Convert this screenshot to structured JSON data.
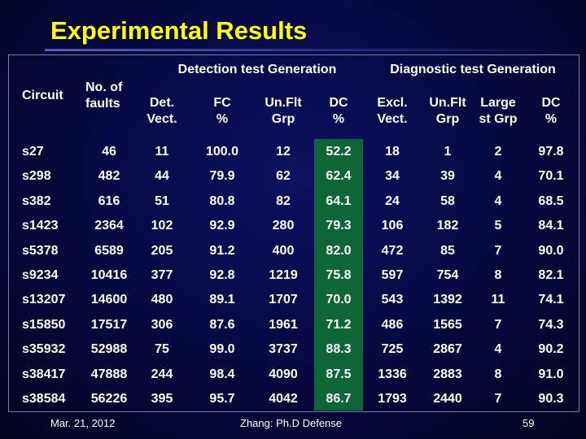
{
  "title": "Experimental Results",
  "groups": {
    "detection": "Detection test Generation",
    "diagnostic": "Diagnostic test Generation"
  },
  "headers": {
    "circuit": "Circuit",
    "faults": [
      "No. of",
      "faults"
    ],
    "det_vect": [
      "Det.",
      "Vect."
    ],
    "fc": [
      "FC",
      "%"
    ],
    "unflt_grp": [
      "Un.Flt",
      "Grp"
    ],
    "dc": [
      "DC",
      "%"
    ],
    "excl_vect": [
      "Excl.",
      "Vect."
    ],
    "unflt_grp2": [
      "Un.Flt",
      "Grp"
    ],
    "large_grp": [
      "Large",
      "st Grp"
    ],
    "dc2": [
      "DC",
      "%"
    ]
  },
  "rows": [
    [
      "s27",
      "46",
      "11",
      "100.0",
      "12",
      "52.2",
      "18",
      "1",
      "2",
      "97.8"
    ],
    [
      "s298",
      "482",
      "44",
      "79.9",
      "62",
      "62.4",
      "34",
      "39",
      "4",
      "70.1"
    ],
    [
      "s382",
      "616",
      "51",
      "80.8",
      "82",
      "64.1",
      "24",
      "58",
      "4",
      "68.5"
    ],
    [
      "s1423",
      "2364",
      "102",
      "92.9",
      "280",
      "79.3",
      "106",
      "182",
      "5",
      "84.1"
    ],
    [
      "s5378",
      "6589",
      "205",
      "91.2",
      "400",
      "82.0",
      "472",
      "85",
      "7",
      "90.0"
    ],
    [
      "s9234",
      "10416",
      "377",
      "92.8",
      "1219",
      "75.8",
      "597",
      "754",
      "8",
      "82.1"
    ],
    [
      "s13207",
      "14600",
      "480",
      "89.1",
      "1707",
      "70.0",
      "543",
      "1392",
      "11",
      "74.1"
    ],
    [
      "s15850",
      "17517",
      "306",
      "87.6",
      "1961",
      "71.2",
      "486",
      "1565",
      "7",
      "74.3"
    ],
    [
      "s35932",
      "52988",
      "75",
      "99.0",
      "3737",
      "88.3",
      "725",
      "2867",
      "4",
      "90.2"
    ],
    [
      "s38417",
      "47888",
      "244",
      "98.4",
      "4090",
      "87.5",
      "1336",
      "2883",
      "8",
      "91.0"
    ],
    [
      "s38584",
      "56226",
      "395",
      "95.7",
      "4042",
      "86.7",
      "1793",
      "2440",
      "7",
      "90.3"
    ]
  ],
  "footer": {
    "date": "Mar. 21, 2012",
    "center": "Zhang: Ph.D Defense",
    "page": "59"
  },
  "colors": {
    "title": "#ffff00",
    "background": "#070a45",
    "dc_highlight": "#0e6638"
  }
}
